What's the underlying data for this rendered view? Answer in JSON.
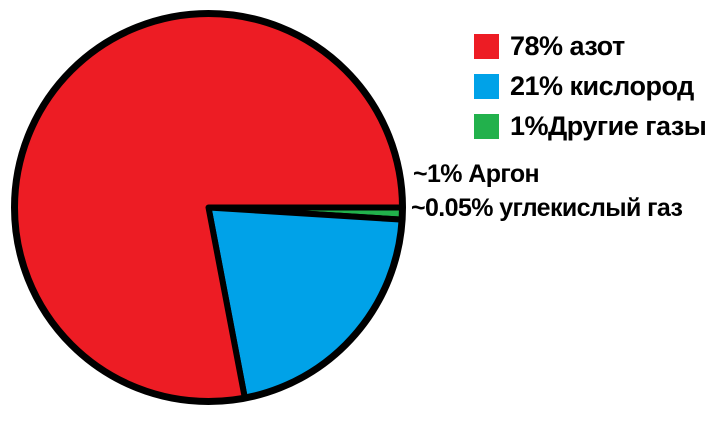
{
  "chart_data": {
    "type": "pie",
    "title": "",
    "legend_position": "right",
    "start_angle_deg": 0,
    "winding": "clockwise-from-3-oclock",
    "outline_color": "#000000",
    "background_color": "#ffffff",
    "series": [
      {
        "id": "nitrogen",
        "name": "азот",
        "value": 78,
        "color": "#ED1C24",
        "legend_label": "78% азот"
      },
      {
        "id": "oxygen",
        "name": "кислород",
        "value": 21,
        "color": "#00A2E8",
        "legend_label": "21% кислород"
      },
      {
        "id": "other-gases",
        "name": "Другие газы",
        "value": 1,
        "color": "#22B14C",
        "legend_label": "1%Другие газы"
      }
    ],
    "annotations": [
      {
        "id": "argon",
        "text": "~1% Аргон"
      },
      {
        "id": "co2",
        "text": "~0.05% углекислый газ"
      }
    ]
  }
}
